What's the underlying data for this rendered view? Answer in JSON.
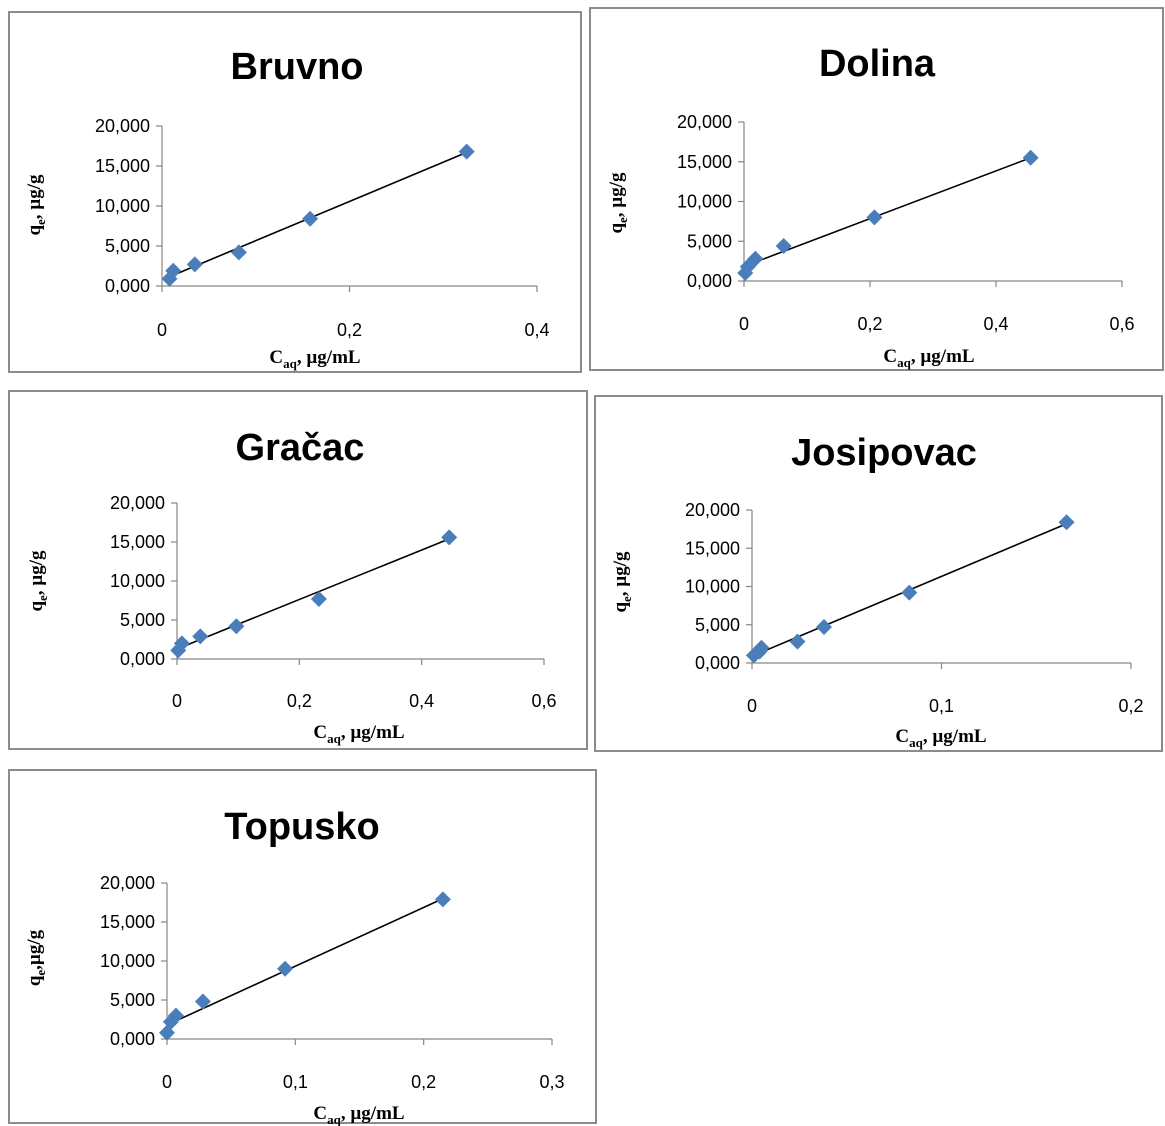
{
  "marker_color": "#4a7ebb",
  "chart_data": [
    {
      "type": "scatter",
      "title": "Bruvno",
      "xlabel": "C_aq, µg/mL",
      "xlabel_main": "C",
      "xlabel_sub": "aq",
      "xlabel_rest": ", µg/mL",
      "ylabel": "q_e, µg/g",
      "ylabel_main": "q",
      "ylabel_sub": "e",
      "ylabel_rest": ", µg/g",
      "xlim": [
        0,
        0.4
      ],
      "ylim": [
        0,
        20000
      ],
      "x_ticks": [
        0,
        0.2,
        0.4
      ],
      "x_tick_labels": [
        "0",
        "0,2",
        "0,4"
      ],
      "y_ticks": [
        0,
        5000,
        10000,
        15000,
        20000
      ],
      "y_tick_labels": [
        "0,000",
        "5,000",
        "10,000",
        "15,000",
        "20,000"
      ],
      "series": [
        {
          "x": [
            0.008,
            0.012,
            0.035,
            0.082,
            0.158,
            0.325
          ],
          "y": [
            900,
            1900,
            2700,
            4200,
            8400,
            16800
          ]
        }
      ],
      "trendline": {
        "x": [
          0.008,
          0.325
        ],
        "y": [
          1150,
          16700
        ]
      }
    },
    {
      "type": "scatter",
      "title": "Dolina",
      "xlabel": "C_aq, µg/mL",
      "xlabel_main": "C",
      "xlabel_sub": "aq",
      "xlabel_rest": ", µg/mL",
      "ylabel": "q_e, µg/g",
      "ylabel_main": "q",
      "ylabel_sub": "e",
      "ylabel_rest": ", µg/g",
      "xlim": [
        0,
        0.6
      ],
      "ylim": [
        0,
        20000
      ],
      "x_ticks": [
        0,
        0.2,
        0.4,
        0.6
      ],
      "x_tick_labels": [
        "0",
        "0,2",
        "0,4",
        "0,6"
      ],
      "y_ticks": [
        0,
        5000,
        10000,
        15000,
        20000
      ],
      "y_tick_labels": [
        "0,000",
        "5,000",
        "10,000",
        "15,000",
        "20,000"
      ],
      "series": [
        {
          "x": [
            0.002,
            0.006,
            0.018,
            0.063,
            0.207,
            0.455
          ],
          "y": [
            1000,
            1800,
            2800,
            4400,
            8000,
            15500
          ]
        }
      ],
      "trendline": {
        "x": [
          0.002,
          0.455
        ],
        "y": [
          1900,
          15500
        ]
      }
    },
    {
      "type": "scatter",
      "title": "Gračac",
      "xlabel": "C_aq, µg/mL",
      "xlabel_main": "C",
      "xlabel_sub": "aq",
      "xlabel_rest": ", µg/mL",
      "ylabel": "q_e, µg/g",
      "ylabel_main": "q",
      "ylabel_sub": "e",
      "ylabel_rest": ", µg/g",
      "xlim": [
        0,
        0.6
      ],
      "ylim": [
        0,
        20000
      ],
      "x_ticks": [
        0,
        0.2,
        0.4,
        0.6
      ],
      "x_tick_labels": [
        "0",
        "0,2",
        "0,4",
        "0,6"
      ],
      "y_ticks": [
        0,
        5000,
        10000,
        15000,
        20000
      ],
      "y_tick_labels": [
        "0,000",
        "5,000",
        "10,000",
        "15,000",
        "20,000"
      ],
      "series": [
        {
          "x": [
            0.002,
            0.008,
            0.038,
            0.097,
            0.232,
            0.445
          ],
          "y": [
            1100,
            2000,
            2900,
            4200,
            7700,
            15600
          ]
        }
      ],
      "trendline": {
        "x": [
          0.002,
          0.445
        ],
        "y": [
          1350,
          15400
        ]
      }
    },
    {
      "type": "scatter",
      "title": "Josipovac",
      "xlabel": "C_aq, µg/mL",
      "xlabel_main": "C",
      "xlabel_sub": "aq",
      "xlabel_rest": ", µg/mL",
      "ylabel": "q_e, µg/g",
      "ylabel_main": "q",
      "ylabel_sub": "e",
      "ylabel_rest": ", µg/g",
      "xlim": [
        0,
        0.2
      ],
      "ylim": [
        0,
        20000
      ],
      "x_ticks": [
        0,
        0.1,
        0.2
      ],
      "x_tick_labels": [
        "0",
        "0,1",
        "0,2"
      ],
      "y_ticks": [
        0,
        5000,
        10000,
        15000,
        20000
      ],
      "y_tick_labels": [
        "0,000",
        "5,000",
        "10,000",
        "15,000",
        "20,000"
      ],
      "series": [
        {
          "x": [
            0.001,
            0.004,
            0.005,
            0.024,
            0.038,
            0.083,
            0.166
          ],
          "y": [
            1000,
            1500,
            2000,
            2800,
            4700,
            9200,
            18400
          ]
        }
      ],
      "trendline": {
        "x": [
          0.001,
          0.166
        ],
        "y": [
          1000,
          18200
        ]
      }
    },
    {
      "type": "scatter",
      "title": "Topusko",
      "xlabel": "C_aq, µg/mL",
      "xlabel_main": "C",
      "xlabel_sub": "aq",
      "xlabel_rest": ", µg/mL",
      "ylabel": "q_e,µg/g",
      "ylabel_main": "q",
      "ylabel_sub": "e",
      "ylabel_rest": ",µg/g",
      "xlim": [
        0,
        0.3
      ],
      "ylim": [
        0,
        20000
      ],
      "x_ticks": [
        0,
        0.1,
        0.2,
        0.3
      ],
      "x_tick_labels": [
        "0",
        "0,1",
        "0,2",
        "0,3"
      ],
      "y_ticks": [
        0,
        5000,
        10000,
        15000,
        20000
      ],
      "y_tick_labels": [
        "0,000",
        "5,000",
        "10,000",
        "15,000",
        "20,000"
      ],
      "series": [
        {
          "x": [
            0.0,
            0.003,
            0.007,
            0.028,
            0.092,
            0.215
          ],
          "y": [
            800,
            2200,
            3000,
            4800,
            9000,
            17900
          ]
        }
      ],
      "trendline": {
        "x": [
          0.0,
          0.215
        ],
        "y": [
          1800,
          18000
        ]
      }
    }
  ]
}
